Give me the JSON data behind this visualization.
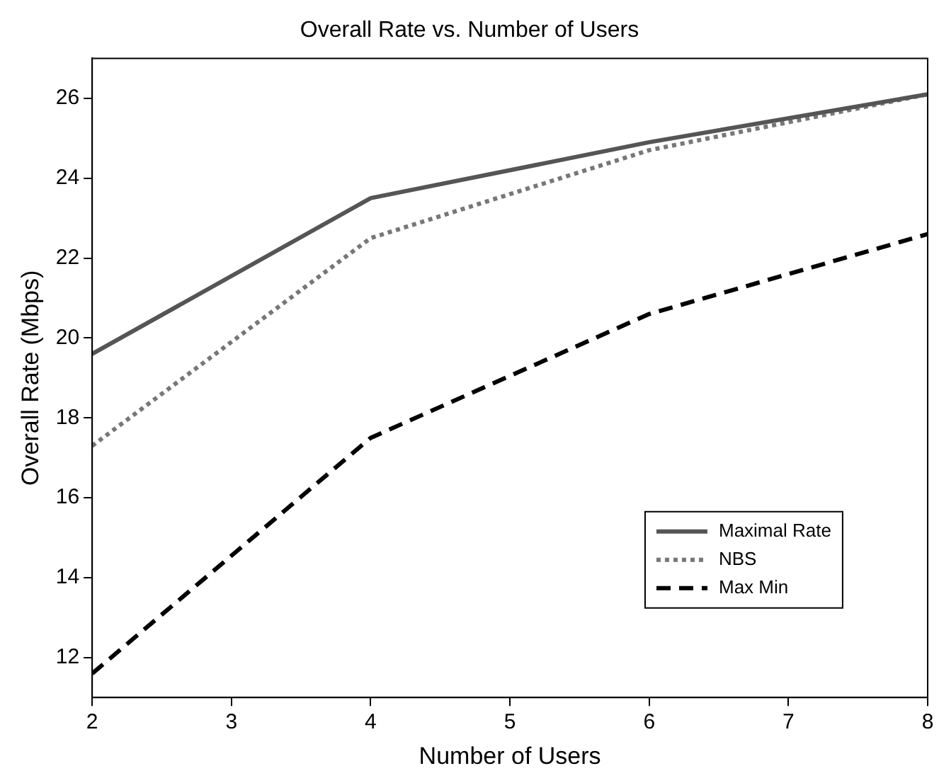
{
  "chart_data": {
    "type": "line",
    "title": "Overall Rate vs. Number of Users",
    "xlabel": "Number of Users",
    "ylabel": "Overall Rate (Mbps)",
    "x": [
      2,
      4,
      6,
      8
    ],
    "xlim": [
      2,
      8
    ],
    "xticks": [
      2,
      3,
      4,
      5,
      6,
      7,
      8
    ],
    "ylim": [
      11,
      27
    ],
    "yticks": [
      12,
      14,
      16,
      18,
      20,
      22,
      24,
      26
    ],
    "grid": false,
    "legend": "bottom right",
    "marker": "none",
    "series": [
      {
        "name": "Maximal Rate",
        "color": "#555555",
        "line_style": "solid",
        "values": [
          19.6,
          23.5,
          24.9,
          26.1
        ]
      },
      {
        "name": "NBS",
        "color": "#777777",
        "line_style": "dotted",
        "values": [
          17.3,
          22.5,
          24.7,
          26.1
        ]
      },
      {
        "name": "Max Min",
        "color": "#000000",
        "line_style": "dashed",
        "values": [
          11.6,
          17.5,
          20.6,
          22.6
        ]
      }
    ]
  }
}
